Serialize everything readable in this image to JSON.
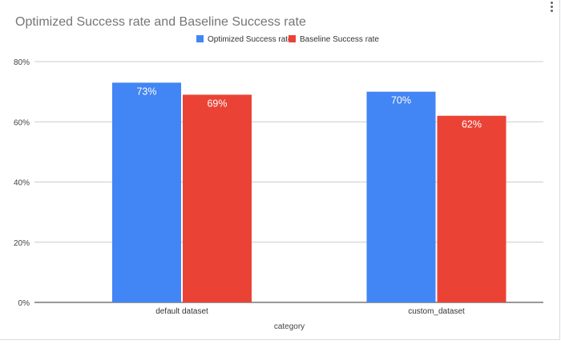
{
  "chart_data": {
    "type": "bar",
    "title": "Optimized Success rate and Baseline Success rate",
    "xlabel": "category",
    "ylabel": "",
    "categories": [
      "default dataset",
      "custom_dataset"
    ],
    "series": [
      {
        "name": "Optimized Success rate",
        "color": "#4285f4",
        "values": [
          73,
          70
        ],
        "labels": [
          "73%",
          "70%"
        ]
      },
      {
        "name": "Baseline Success rate",
        "color": "#ea4335",
        "values": [
          69,
          62
        ],
        "labels": [
          "69%",
          "62%"
        ]
      }
    ],
    "ylim": [
      0,
      80
    ],
    "yticks": [
      0,
      20,
      40,
      60,
      80
    ],
    "ytick_labels": [
      "0%",
      "20%",
      "40%",
      "60%",
      "80%"
    ],
    "grid": true,
    "legend_position": "top-center"
  },
  "menu_icon": "more-vert-icon"
}
